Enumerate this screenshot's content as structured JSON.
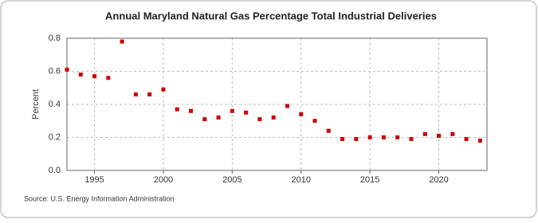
{
  "chart_data": {
    "type": "scatter",
    "title": "Annual Maryland Natural Gas Percentage Total Industrial Deliveries",
    "ylabel": "Percent",
    "source": "Source: U.S. Energy Information Administration",
    "x": [
      1993,
      1994,
      1995,
      1996,
      1997,
      1998,
      1999,
      2000,
      2001,
      2002,
      2003,
      2004,
      2005,
      2006,
      2007,
      2008,
      2009,
      2010,
      2011,
      2012,
      2013,
      2014,
      2015,
      2016,
      2017,
      2018,
      2019,
      2020,
      2021,
      2022,
      2023
    ],
    "series": [
      {
        "name": "Percent",
        "color": "#cc0000",
        "values": [
          0.61,
          0.58,
          0.57,
          0.56,
          0.78,
          0.46,
          0.46,
          0.49,
          0.37,
          0.36,
          0.31,
          0.32,
          0.36,
          0.35,
          0.31,
          0.32,
          0.39,
          0.34,
          0.3,
          0.24,
          0.19,
          0.19,
          0.2,
          0.2,
          0.2,
          0.19,
          0.22,
          0.21,
          0.22,
          0.19,
          0.18
        ]
      }
    ],
    "xlim": [
      1993,
      2023.5
    ],
    "xticks": [
      1995,
      2000,
      2005,
      2010,
      2015,
      2020
    ],
    "ylim": [
      0,
      0.8
    ],
    "yticks": [
      {
        "value": 0,
        "label": "0.0"
      },
      0.2,
      0.4,
      0.6,
      0.8
    ],
    "grid": true
  }
}
